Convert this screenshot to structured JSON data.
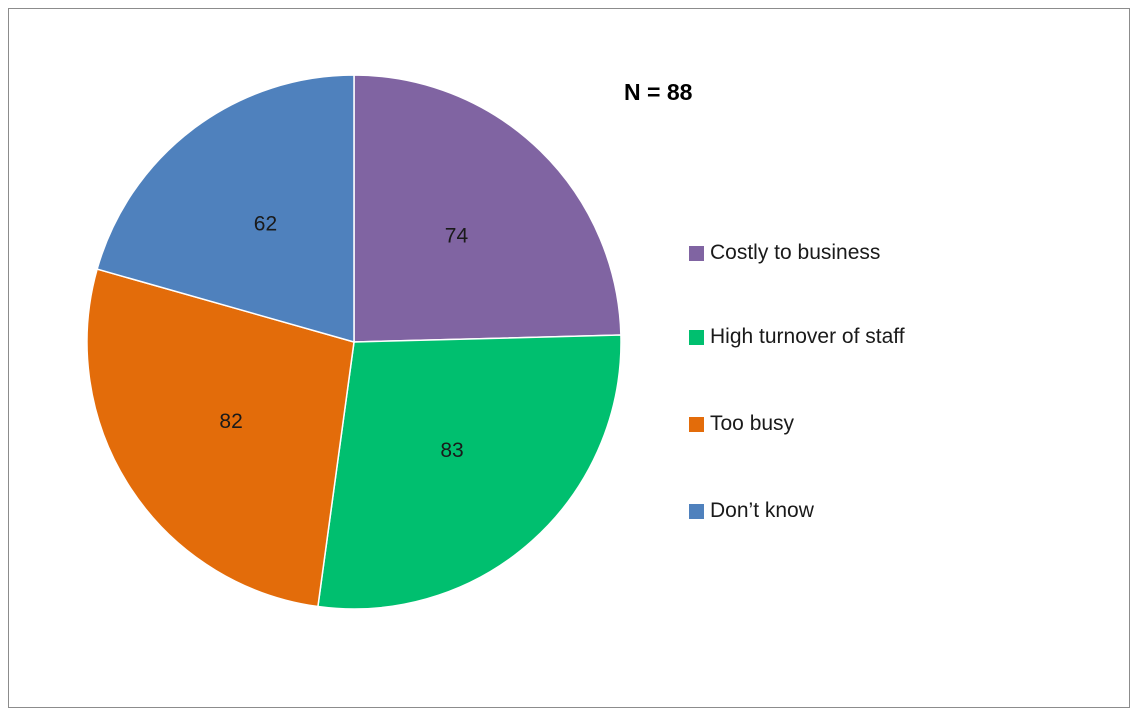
{
  "chart_data": {
    "type": "pie",
    "annotation": "N = 88",
    "categories": [
      "Costly to business",
      "High turnover of staff",
      "Too busy",
      "Don’t know"
    ],
    "values": [
      74,
      83,
      82,
      62
    ],
    "colors": [
      "#8064A2",
      "#00BF6F",
      "#E36C0A",
      "#4F81BD"
    ],
    "slice_order": "clockwise-from-top",
    "data_labels": true,
    "legend": "right"
  }
}
